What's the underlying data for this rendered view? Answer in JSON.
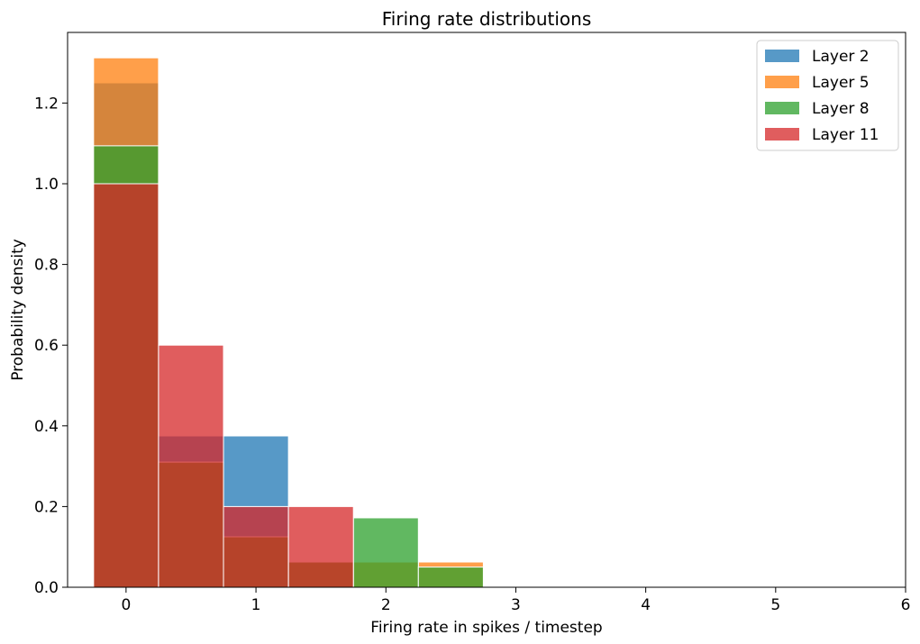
{
  "chart_data": {
    "type": "bar",
    "title": "Firing rate distributions",
    "xlabel": "Firing rate in spikes / timestep",
    "ylabel": "Probability density",
    "xlim": [
      -0.45,
      6
    ],
    "ylim": [
      0,
      1.375
    ],
    "xticks": [
      0,
      1,
      2,
      3,
      4,
      5,
      6
    ],
    "yticks": [
      0.0,
      0.2,
      0.4,
      0.6,
      0.8,
      1.0,
      1.2
    ],
    "bin_edges": [
      -0.25,
      0.25,
      0.75,
      1.25,
      1.75,
      2.25,
      2.75
    ],
    "grid": false,
    "legend_position": "top-right",
    "series": [
      {
        "name": "Layer 2",
        "color": "#1f77b4",
        "values": [
          1.25,
          0.375,
          0.375,
          0.0,
          0.0,
          0.0
        ]
      },
      {
        "name": "Layer 5",
        "color": "#ff7f0e",
        "values": [
          1.312,
          0.31,
          0.125,
          0.0625,
          0.0625,
          0.0625
        ]
      },
      {
        "name": "Layer 8",
        "color": "#2ca02c",
        "values": [
          1.094,
          0.31,
          0.125,
          0.0625,
          0.172,
          0.05
        ]
      },
      {
        "name": "Layer 11",
        "color": "#d62728",
        "values": [
          1.0,
          0.6,
          0.2,
          0.2,
          0.0,
          0.0
        ]
      }
    ]
  }
}
